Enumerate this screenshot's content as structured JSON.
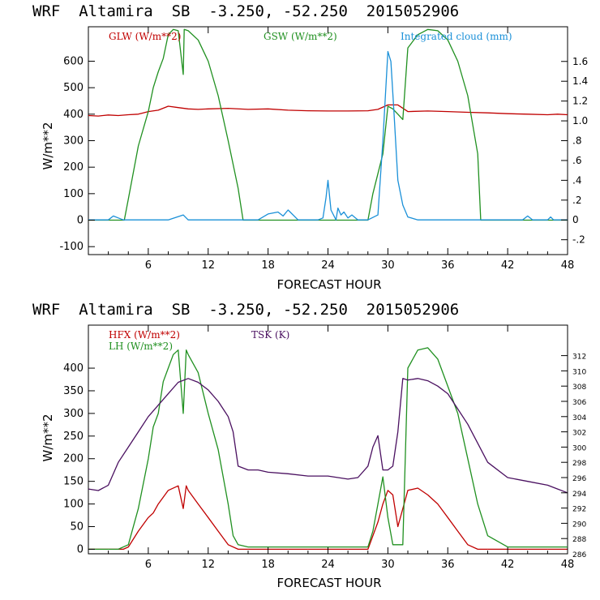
{
  "chart_data": [
    {
      "type": "line",
      "title": "WRF  Altamira  SB  -3.250, -52.250  2015052906",
      "xlabel": "FORECAST HOUR",
      "ylabel": "W/m**2",
      "xlim": [
        0,
        48
      ],
      "ylim": [
        -130,
        730
      ],
      "y2lim": [
        -0.35,
        1.95
      ],
      "xticks": [
        6,
        12,
        18,
        24,
        30,
        36,
        42,
        48
      ],
      "yticks": [
        -100,
        0,
        100,
        200,
        300,
        400,
        500,
        600
      ],
      "yticks_right": [
        -0.2,
        0,
        0.2,
        0.4,
        0.6,
        0.8,
        1.0,
        1.2,
        1.4,
        1.6
      ],
      "yticks_right_labels": [
        "-.2",
        "0",
        ".2",
        ".4",
        ".6",
        ".8",
        "1.0",
        "1.2",
        "1.4",
        "1.6"
      ],
      "series": [
        {
          "name": "GLW (W/m**2)",
          "color": "#c00000",
          "axis": "left",
          "x": [
            0,
            1,
            2,
            3,
            4,
            5,
            5.5,
            6,
            7,
            8,
            9,
            10,
            11,
            12,
            14,
            16,
            18,
            20,
            22,
            24,
            26,
            28,
            29,
            30,
            31,
            32,
            34,
            36,
            38,
            40,
            42,
            44,
            46,
            47,
            48
          ],
          "y": [
            395,
            393,
            397,
            395,
            398,
            400,
            405,
            410,
            415,
            430,
            425,
            420,
            418,
            420,
            422,
            418,
            420,
            415,
            413,
            412,
            412,
            413,
            418,
            435,
            435,
            410,
            412,
            410,
            407,
            405,
            402,
            400,
            398,
            400,
            398
          ]
        },
        {
          "name": "GSW (W/m**2)",
          "color": "#209020",
          "axis": "left",
          "x": [
            0,
            3,
            3.6,
            4,
            5,
            6,
            6.5,
            7,
            7.5,
            8,
            8.5,
            9,
            9.5,
            9.6,
            10,
            11,
            12,
            13,
            14,
            15,
            15.5,
            18,
            28,
            28.5,
            29.5,
            30,
            30.5,
            31,
            31.5,
            32,
            33,
            34,
            35,
            36,
            37,
            38,
            39,
            39.3,
            48
          ],
          "y": [
            0,
            0,
            0,
            80,
            280,
            410,
            500,
            560,
            610,
            700,
            720,
            715,
            550,
            720,
            715,
            680,
            600,
            470,
            300,
            120,
            0,
            0,
            0,
            100,
            250,
            430,
            420,
            400,
            380,
            650,
            700,
            720,
            715,
            680,
            600,
            470,
            250,
            0,
            0
          ]
        },
        {
          "name": "Integrated cloud (mm)",
          "color": "#1a90d8",
          "axis": "right",
          "x": [
            0,
            2,
            2.5,
            3,
            3.5,
            4,
            8,
            9.5,
            10,
            10.5,
            17,
            18,
            19,
            19.5,
            20,
            21,
            22,
            23,
            23.5,
            23.8,
            24,
            24.3,
            24.8,
            25,
            25.3,
            25.6,
            26,
            26.4,
            27,
            28,
            29,
            29.5,
            30,
            30.3,
            30.6,
            31,
            31.5,
            32,
            33,
            43.5,
            44,
            44.5,
            46,
            46.3,
            46.6,
            48
          ],
          "y": [
            0,
            0,
            0.04,
            0.02,
            0,
            0,
            0,
            0.05,
            0,
            0,
            0,
            0.06,
            0.08,
            0.04,
            0.1,
            0,
            0,
            0,
            0.02,
            0.22,
            0.4,
            0.1,
            0,
            0.12,
            0.05,
            0.08,
            0.02,
            0.05,
            0,
            0,
            0.05,
            0.8,
            1.7,
            1.6,
            1.1,
            0.4,
            0.15,
            0.03,
            0,
            0,
            0.04,
            0,
            0,
            0.03,
            0,
            0
          ]
        }
      ]
    },
    {
      "type": "line",
      "title": "WRF  Altamira  SB  -3.250, -52.250  2015052906",
      "xlabel": "FORECAST HOUR",
      "ylabel": "W/m**2",
      "xlim": [
        0,
        48
      ],
      "ylim": [
        -10,
        495
      ],
      "y2lim": [
        286,
        316
      ],
      "xticks": [
        6,
        12,
        18,
        24,
        30,
        36,
        42,
        48
      ],
      "yticks": [
        0,
        50,
        100,
        150,
        200,
        250,
        300,
        350,
        400
      ],
      "yticks_right": [
        286,
        288,
        290,
        292,
        294,
        296,
        298,
        300,
        302,
        304,
        306,
        308,
        310,
        312
      ],
      "yticks_right_labels": [
        "286",
        "288",
        "290",
        "292",
        "294",
        "296",
        "298",
        "300",
        "302",
        "304",
        "306",
        "308",
        "310",
        "312"
      ],
      "series": [
        {
          "name": "HFX (W/m**2)",
          "color": "#c00000",
          "axis": "left",
          "x": [
            0,
            2,
            3,
            3.5,
            4,
            5,
            6,
            6.5,
            7,
            8,
            9,
            9.5,
            9.8,
            10,
            11,
            12,
            13,
            14,
            15,
            18,
            28,
            29,
            29.5,
            30,
            30.5,
            31,
            32,
            33,
            34,
            35,
            36,
            37,
            38,
            39,
            40,
            48
          ],
          "y": [
            0,
            0,
            0,
            0,
            5,
            40,
            70,
            80,
            100,
            130,
            140,
            90,
            140,
            130,
            100,
            70,
            40,
            10,
            0,
            0,
            0,
            60,
            100,
            130,
            120,
            50,
            130,
            135,
            120,
            100,
            70,
            40,
            10,
            0,
            0,
            0
          ]
        },
        {
          "name": "LH  (W/m**2)",
          "color": "#209020",
          "axis": "left",
          "x": [
            0,
            2,
            3,
            4,
            5,
            6,
            6.5,
            7,
            7.5,
            8,
            8.5,
            9,
            9.5,
            9.8,
            10,
            11,
            12,
            13,
            14,
            14.5,
            15,
            16,
            18,
            20,
            24,
            28,
            28.5,
            29,
            29.5,
            30,
            30.5,
            31,
            31.5,
            32,
            33,
            34,
            35,
            36,
            37,
            38,
            39,
            40,
            42,
            48
          ],
          "y": [
            0,
            0,
            0,
            10,
            90,
            200,
            270,
            300,
            370,
            400,
            430,
            440,
            300,
            440,
            430,
            390,
            300,
            220,
            100,
            30,
            10,
            5,
            5,
            5,
            5,
            5,
            40,
            100,
            160,
            70,
            10,
            10,
            10,
            400,
            440,
            445,
            420,
            360,
            300,
            200,
            100,
            30,
            5,
            5
          ]
        },
        {
          "name": "TSK (K)",
          "color": "#4a1060",
          "axis": "right",
          "x": [
            0,
            1,
            2,
            3,
            4,
            5,
            6,
            7,
            8,
            9,
            10,
            11,
            12,
            13,
            14,
            14.5,
            15,
            16,
            17,
            18,
            20,
            22,
            24,
            25,
            26,
            27,
            28,
            28.5,
            29,
            29.5,
            30,
            30.5,
            31,
            31.5,
            32,
            33,
            34,
            35,
            36,
            37,
            38,
            40,
            42,
            44,
            46,
            47,
            48
          ],
          "y": [
            294.5,
            294.3,
            295,
            298,
            300,
            302,
            304,
            305.5,
            307,
            308.5,
            309,
            308.5,
            307.5,
            306,
            304,
            302,
            297.5,
            297,
            297,
            296.7,
            296.5,
            296.2,
            296.2,
            296,
            295.8,
            296,
            297.5,
            300,
            301.5,
            297,
            297,
            297.5,
            302,
            309,
            308.8,
            309,
            308.7,
            308,
            307,
            305,
            303,
            298,
            296,
            295.5,
            295,
            294.5,
            294
          ]
        }
      ]
    }
  ],
  "legend1": {
    "glw": "GLW (W/m**2)",
    "gsw": "GSW (W/m**2)",
    "cloud": "Integrated cloud (mm)"
  },
  "legend2": {
    "hfx": "HFX (W/m**2)",
    "lh": "LH  (W/m**2)",
    "tsk": "TSK (K)"
  },
  "colors": {
    "red": "#c00000",
    "green": "#209020",
    "blue": "#1a90d8",
    "purple": "#4a1060"
  }
}
